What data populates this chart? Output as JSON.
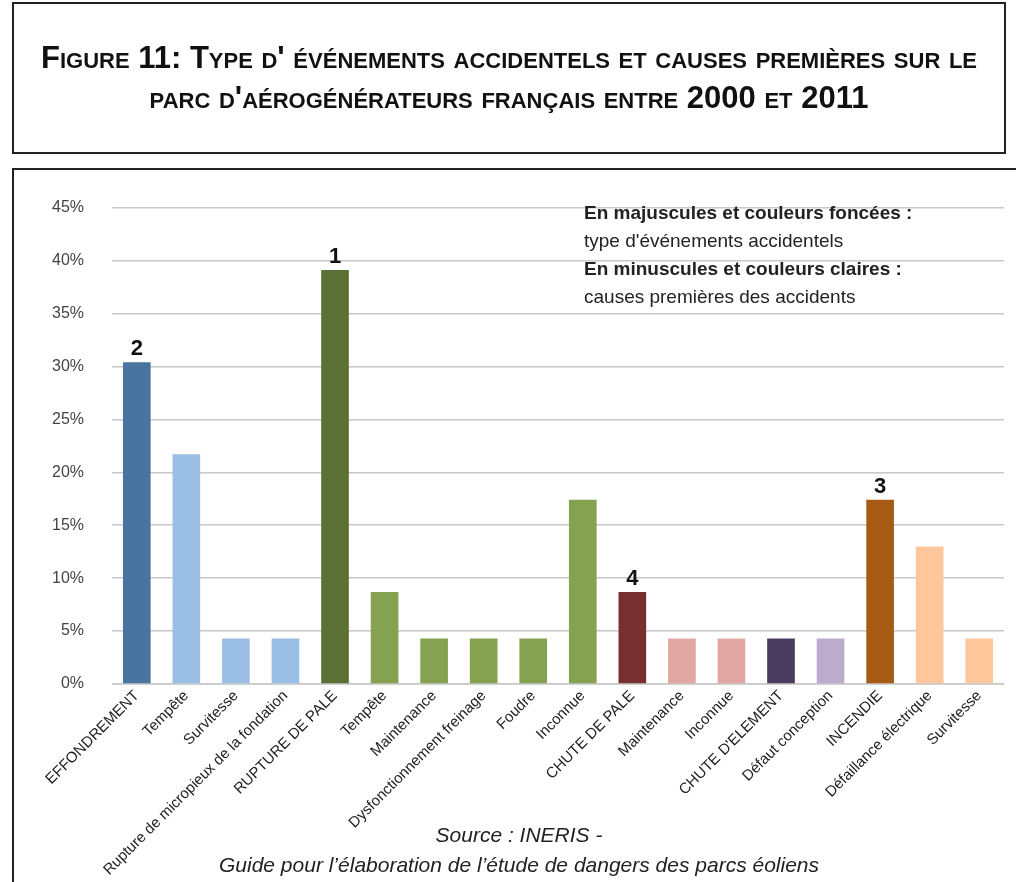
{
  "chart_data": {
    "type": "bar",
    "title": "Figure 11: Type d' événements accidentels et causes premières sur le parc d'aérogénérateurs français entre 2000 et 2011",
    "categories": [
      "EFFONDREMENT",
      "Tempête",
      "Survitesse",
      "Rupture de micropieux de la fondation",
      "RUPTURE DE PALE",
      "Tempête",
      "Maintenance",
      "Dysfonctionnement freinage",
      "Foudre",
      "Inconnue",
      "CHUTE DE PALE",
      "Maintenance",
      "Inconnue",
      "CHUTE D'ELEMENT",
      "Défaut conception",
      "INCENDIE",
      "Défaillance électrique",
      "Survitesse"
    ],
    "values": [
      30.4,
      21.7,
      4.3,
      4.3,
      39.1,
      8.7,
      4.3,
      4.3,
      4.3,
      17.4,
      8.7,
      4.3,
      4.3,
      4.3,
      4.3,
      17.4,
      13.0,
      4.3
    ],
    "colors": [
      "#48749f",
      "#9bbfe4",
      "#9bbfe4",
      "#9bbfe4",
      "#5a7035",
      "#84a24f",
      "#84a24f",
      "#84a24f",
      "#84a24f",
      "#84a24f",
      "#77302f",
      "#e2a6a3",
      "#e2a6a3",
      "#4a3b60",
      "#bcabcc",
      "#a65a14",
      "#fdc79b",
      "#fdc79b"
    ],
    "ylim": [
      0,
      45
    ],
    "yticks": [
      {
        "value": 0,
        "label": "0%"
      },
      {
        "value": 5,
        "label": "5%"
      },
      {
        "value": 10,
        "label": "10%"
      },
      {
        "value": 15,
        "label": "15%"
      },
      {
        "value": 20,
        "label": "20%"
      },
      {
        "value": 25,
        "label": "25%"
      },
      {
        "value": 30,
        "label": "30%"
      },
      {
        "value": 35,
        "label": "35%"
      },
      {
        "value": 40,
        "label": "40%"
      },
      {
        "value": 45,
        "label": "45%"
      }
    ],
    "grid": "y",
    "annotations": [
      {
        "text": "2",
        "x": "EFFONDREMENT",
        "y": 30.4
      },
      {
        "text": "1",
        "x": "RUPTURE DE PALE",
        "y": 39.1
      },
      {
        "text": "4",
        "x": "CHUTE DE PALE",
        "y": 8.7
      },
      {
        "text": "3",
        "x": "INCENDIE",
        "y": 17.4
      },
      "En majuscules et couleurs foncées :\ntype d'événements accidentels",
      "En minuscules et couleurs claires :\ncauses premières des accidents",
      "Source : INERIS -\nGuide pour l’élaboration de l’étude de dangers des parcs éoliens"
    ]
  }
}
